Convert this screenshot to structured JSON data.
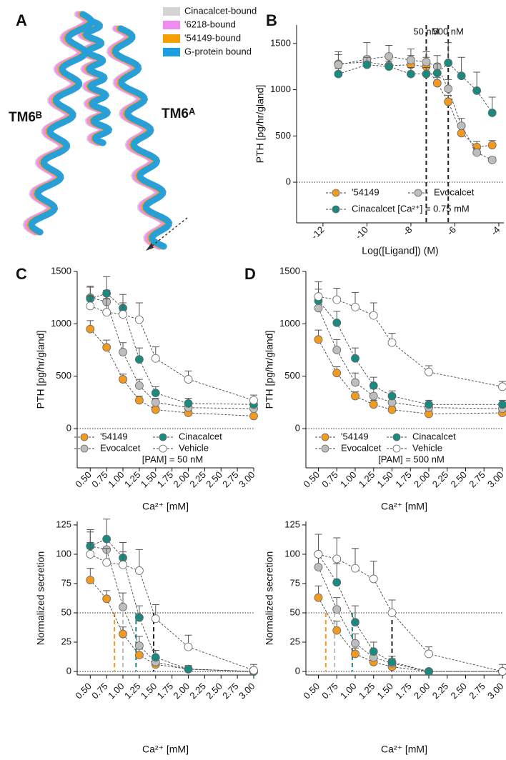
{
  "panel_a": {
    "label": "A",
    "legend": [
      {
        "name": "Cinacalcet-bound",
        "color": "#d4d4d4"
      },
      {
        "name": "'6218-bound",
        "color": "#f08cf0"
      },
      {
        "name": "'54149-bound",
        "color": "#f5a000"
      },
      {
        "name": "G-protein bound",
        "color": "#1c9fe0"
      }
    ],
    "helix_labels": [
      "TM6ᴮ",
      "TM6ᴬ"
    ]
  },
  "chart_data": [
    {
      "type": "line",
      "panel_label": "B",
      "x_label": "Log([Ligand]) (M)",
      "y_label": "PTH [pg/hr/gland]",
      "x": [
        -11.3,
        -10,
        -9,
        -8,
        -7.3,
        -6.8,
        -6.3,
        -5.7,
        -5,
        -4.3
      ],
      "xlim": [
        -13.2,
        -3.77
      ],
      "xticks": [
        -12,
        -10,
        -8,
        -6,
        -4
      ],
      "ylim": [
        -440,
        1700
      ],
      "yticks": [
        0,
        500,
        1000,
        1500
      ],
      "hlines": [
        0
      ],
      "vlines": [
        {
          "x": -7.3,
          "label": "50 nM",
          "color": "#222222"
        },
        {
          "x": -6.3,
          "label": "500 nM",
          "color": "#222222"
        }
      ],
      "series": [
        {
          "name": "'54149",
          "color": "#f29a1f",
          "values": [
            1280,
            1300,
            1260,
            1270,
            1250,
            1070,
            870,
            530,
            380,
            400
          ],
          "errors": [
            100,
            60,
            90,
            100,
            100,
            60,
            70,
            60,
            60,
            50
          ]
        },
        {
          "name": "Evocalcet",
          "color": "#bdbdbd",
          "values": [
            1270,
            1330,
            1360,
            1320,
            1300,
            1250,
            1010,
            610,
            320,
            240
          ],
          "errors": [
            140,
            180,
            120,
            120,
            110,
            120,
            100,
            80,
            40,
            30
          ]
        },
        {
          "name": "Cinacalcet [Ca²⁺] = 0.75 mM",
          "color": "#1a8a80",
          "values": [
            1170,
            1270,
            1250,
            1170,
            1170,
            1180,
            1290,
            1150,
            990,
            750
          ],
          "errors": [
            60,
            80,
            60,
            70,
            70,
            100,
            220,
            200,
            200,
            170
          ]
        }
      ]
    },
    {
      "type": "line",
      "panel_label": "C",
      "x_label": "Ca²⁺ [mM]",
      "y_label": "PTH [pg/hr/gland]",
      "annotation": "[PAM] = 50 nM",
      "x": [
        0.5,
        0.75,
        1.0,
        1.25,
        1.5,
        2.0,
        3.0
      ],
      "xlim": [
        0.3,
        3.0
      ],
      "xticks": [
        {
          "value": 0.5,
          "label": "0.50"
        },
        {
          "value": 0.75,
          "label": "0.75"
        },
        {
          "value": 1.0,
          "label": "1.00"
        },
        {
          "value": 1.25,
          "label": "1.25"
        },
        {
          "value": 1.5,
          "label": "1.50"
        },
        {
          "value": 1.75,
          "label": "1.75"
        },
        {
          "value": 2.0,
          "label": "2.00"
        },
        {
          "value": 2.25,
          "label": "2.25"
        },
        {
          "value": 2.5,
          "label": "2.50"
        },
        {
          "value": 2.75,
          "label": "2.75"
        },
        {
          "value": 3.0,
          "label": "3.00"
        }
      ],
      "ylim": [
        -375,
        1500
      ],
      "yticks": [
        0,
        500,
        1000,
        1500
      ],
      "hlines": [
        0
      ],
      "series": [
        {
          "name": "'54149",
          "color": "#f29a1f",
          "values": [
            950,
            775,
            470,
            270,
            180,
            150,
            120
          ],
          "errors": [
            80,
            70,
            50,
            40,
            30,
            30,
            20
          ]
        },
        {
          "name": "Evocalcet",
          "color": "#bdbdbd",
          "values": [
            1250,
            1210,
            730,
            410,
            250,
            200,
            190
          ],
          "errors": [
            100,
            110,
            90,
            60,
            40,
            40,
            40
          ]
        },
        {
          "name": "Cinacalcet",
          "color": "#1a8a80",
          "values": [
            1240,
            1290,
            1150,
            660,
            340,
            240,
            230
          ],
          "errors": [
            120,
            160,
            130,
            110,
            60,
            50,
            50
          ]
        },
        {
          "name": "Vehicle",
          "color": "#ffffff",
          "values": [
            1170,
            1110,
            1090,
            1040,
            670,
            470,
            270
          ],
          "errors": [
            90,
            130,
            110,
            160,
            110,
            80,
            50
          ]
        }
      ]
    },
    {
      "type": "line",
      "panel_label": "D",
      "x_label": "Ca²⁺ [mM]",
      "y_label": "PTH [pg/hr/gland]",
      "annotation": "[PAM] = 500 nM",
      "x": [
        0.5,
        0.75,
        1.0,
        1.25,
        1.5,
        2.0,
        3.0
      ],
      "xlim": [
        0.33,
        3.0
      ],
      "xticks": [
        {
          "value": 0.5,
          "label": "0.50"
        },
        {
          "value": 0.75,
          "label": "0.75"
        },
        {
          "value": 1.0,
          "label": "1.00"
        },
        {
          "value": 1.25,
          "label": "1.25"
        },
        {
          "value": 1.5,
          "label": "1.50"
        },
        {
          "value": 1.75,
          "label": "1.75"
        },
        {
          "value": 2.0,
          "label": "2.00"
        },
        {
          "value": 2.25,
          "label": "2.25"
        },
        {
          "value": 2.5,
          "label": "2.50"
        },
        {
          "value": 2.75,
          "label": "2.75"
        },
        {
          "value": 3.0,
          "label": "3.00"
        }
      ],
      "ylim": [
        -375,
        1500
      ],
      "yticks": [
        0,
        500,
        1000,
        1500
      ],
      "hlines": [
        0
      ],
      "series": [
        {
          "name": "'54149",
          "color": "#f29a1f",
          "values": [
            850,
            530,
            310,
            230,
            180,
            140,
            150
          ],
          "errors": [
            90,
            60,
            40,
            40,
            30,
            30,
            30
          ]
        },
        {
          "name": "Evocalcet",
          "color": "#bdbdbd",
          "values": [
            1150,
            750,
            440,
            310,
            250,
            200,
            190
          ],
          "errors": [
            110,
            100,
            90,
            70,
            50,
            40,
            40
          ]
        },
        {
          "name": "Cinacalcet",
          "color": "#1a8a80",
          "values": [
            1220,
            1010,
            670,
            410,
            310,
            230,
            230
          ],
          "errors": [
            110,
            110,
            100,
            80,
            50,
            40,
            40
          ]
        },
        {
          "name": "Vehicle",
          "color": "#ffffff",
          "values": [
            1260,
            1230,
            1160,
            1080,
            820,
            540,
            400
          ],
          "errors": [
            140,
            110,
            140,
            120,
            90,
            60,
            50
          ]
        }
      ]
    },
    {
      "type": "line",
      "x_label": "Ca²⁺ [mM]",
      "y_label": "Normalized secretion",
      "x": [
        0.5,
        0.75,
        1.0,
        1.25,
        1.5,
        2.0,
        3.0
      ],
      "xlim": [
        0.3,
        3.0
      ],
      "xticks": [
        {
          "value": 0.5,
          "label": "0.50"
        },
        {
          "value": 0.75,
          "label": "0.75"
        },
        {
          "value": 1.0,
          "label": "1.00"
        },
        {
          "value": 1.25,
          "label": "1.25"
        },
        {
          "value": 1.5,
          "label": "1.50"
        },
        {
          "value": 1.75,
          "label": "1.75"
        },
        {
          "value": 2.0,
          "label": "2.00"
        },
        {
          "value": 2.25,
          "label": "2.25"
        },
        {
          "value": 2.5,
          "label": "2.50"
        },
        {
          "value": 2.75,
          "label": "2.75"
        },
        {
          "value": 3.0,
          "label": "3.00"
        }
      ],
      "ylim": [
        -3,
        128
      ],
      "yticks": [
        0,
        25,
        50,
        75,
        100,
        125
      ],
      "hlines": [
        0,
        50
      ],
      "vlines": [
        {
          "x": 0.87,
          "y": 50,
          "color": "#f29a1f"
        },
        {
          "x": 1.0,
          "y": 50,
          "color": "#bdbdbd"
        },
        {
          "x": 1.2,
          "y": 50,
          "color": "#1a8a80"
        },
        {
          "x": 1.47,
          "y": 50,
          "color": "#222222"
        }
      ],
      "series": [
        {
          "color": "#f29a1f",
          "values": [
            78,
            62,
            32,
            14,
            6,
            2,
            0
          ],
          "errors": [
            10,
            7,
            6,
            5,
            4,
            3,
            2
          ]
        },
        {
          "color": "#bdbdbd",
          "values": [
            107,
            104,
            55,
            22,
            8,
            2,
            0
          ],
          "errors": [
            12,
            10,
            12,
            8,
            5,
            3,
            2
          ]
        },
        {
          "color": "#1a8a80",
          "values": [
            107,
            113,
            97,
            46,
            12,
            2,
            0
          ],
          "errors": [
            14,
            17,
            13,
            10,
            6,
            3,
            3
          ]
        },
        {
          "color": "#ffffff",
          "values": [
            100,
            93,
            91,
            86,
            45,
            21,
            1
          ],
          "errors": [
            10,
            12,
            11,
            18,
            12,
            10,
            5
          ]
        }
      ]
    },
    {
      "type": "line",
      "x_label": "Ca²⁺ [mM]",
      "y_label": "Normalized secretion",
      "x": [
        0.5,
        0.75,
        1.0,
        1.25,
        1.5,
        2.0,
        3.0
      ],
      "xlim": [
        0.33,
        3.0
      ],
      "xticks": [
        {
          "value": 0.5,
          "label": "0.50"
        },
        {
          "value": 0.75,
          "label": "0.75"
        },
        {
          "value": 1.0,
          "label": "1.00"
        },
        {
          "value": 1.25,
          "label": "1.25"
        },
        {
          "value": 1.5,
          "label": "1.50"
        },
        {
          "value": 1.75,
          "label": "1.75"
        },
        {
          "value": 2.0,
          "label": "2.00"
        },
        {
          "value": 2.25,
          "label": "2.25"
        },
        {
          "value": 2.5,
          "label": "2.50"
        },
        {
          "value": 2.75,
          "label": "2.75"
        },
        {
          "value": 3.0,
          "label": "3.00"
        }
      ],
      "ylim": [
        -3,
        128
      ],
      "yticks": [
        0,
        25,
        50,
        75,
        100,
        125
      ],
      "hlines": [
        0,
        50
      ],
      "vlines": [
        {
          "x": 0.6,
          "y": 50,
          "color": "#f29a1f"
        },
        {
          "x": 0.72,
          "y": 50,
          "color": "#bdbdbd"
        },
        {
          "x": 0.96,
          "y": 50,
          "color": "#1a8a80"
        },
        {
          "x": 1.5,
          "y": 50,
          "color": "#222222"
        }
      ],
      "series": [
        {
          "color": "#f29a1f",
          "values": [
            63,
            35,
            15,
            8,
            4,
            0,
            0
          ],
          "errors": [
            10,
            8,
            5,
            4,
            3,
            2,
            2
          ]
        },
        {
          "color": "#bdbdbd",
          "values": [
            89,
            53,
            24,
            12,
            7,
            0,
            0
          ],
          "errors": [
            12,
            10,
            8,
            5,
            4,
            2,
            2
          ]
        },
        {
          "color": "#1a8a80",
          "values": [
            100,
            76,
            42,
            17,
            8,
            0,
            0
          ],
          "errors": [
            17,
            16,
            14,
            8,
            5,
            2,
            2
          ]
        },
        {
          "color": "#ffffff",
          "values": [
            100,
            96,
            88,
            79,
            50,
            15,
            0
          ],
          "errors": [
            17,
            18,
            17,
            15,
            11,
            6,
            6
          ]
        }
      ]
    }
  ]
}
